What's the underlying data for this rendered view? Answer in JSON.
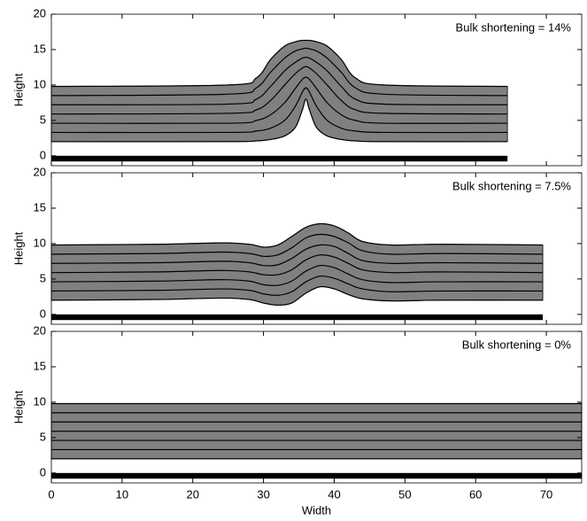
{
  "chart_data": [
    {
      "type": "layers",
      "annotation": "Bulk shortening = 14%",
      "ylabel": "Height",
      "xlim": [
        0,
        75
      ],
      "ylim": [
        -1.4,
        20
      ],
      "xticks": [
        0,
        10,
        20,
        30,
        40,
        50,
        60,
        70
      ],
      "yticks": [
        0,
        5,
        10,
        15,
        20
      ],
      "show_xtick_labels": false,
      "line_color": "#000000",
      "layer_color": "#808080",
      "basement_color": "#000000",
      "basement": {
        "x": [
          0,
          64.5
        ],
        "y": [
          -0.8,
          0
        ]
      },
      "x": [
        0,
        25,
        29,
        31,
        33,
        34.5,
        35.5,
        36,
        36.5,
        37.5,
        39,
        41,
        43,
        47,
        64.5
      ],
      "series": [
        {
          "values": [
            2,
            2,
            2.1,
            2.3,
            2.8,
            4,
            6.5,
            8,
            6.5,
            4,
            2.8,
            2.3,
            2.1,
            2,
            2
          ]
        },
        {
          "values": [
            3.3,
            3.3,
            3.5,
            3.9,
            5,
            7,
            9,
            9.6,
            9,
            7,
            5,
            3.9,
            3.5,
            3.3,
            3.3
          ]
        },
        {
          "values": [
            4.6,
            4.6,
            5,
            5.8,
            7.5,
            9.5,
            10.8,
            11.1,
            10.8,
            9.5,
            7.5,
            5.8,
            5,
            4.6,
            4.6
          ]
        },
        {
          "values": [
            5.9,
            6,
            6.5,
            7.8,
            10,
            11.6,
            12.4,
            12.6,
            12.4,
            11.6,
            10,
            7.8,
            6.5,
            6,
            5.9
          ]
        },
        {
          "values": [
            7.2,
            7.3,
            8,
            9.8,
            12,
            13.2,
            13.8,
            13.9,
            13.8,
            13.2,
            12,
            9.8,
            8,
            7.3,
            7.2
          ]
        },
        {
          "values": [
            8.5,
            8.7,
            9.6,
            11.8,
            13.8,
            14.8,
            15.1,
            15.2,
            15.1,
            14.8,
            13.8,
            11.8,
            9.6,
            8.7,
            8.5
          ]
        },
        {
          "values": [
            9.8,
            10,
            11,
            13.6,
            15.5,
            16.1,
            16.3,
            16.3,
            16.3,
            16.1,
            15.5,
            13.6,
            11,
            10,
            9.8
          ]
        }
      ]
    },
    {
      "type": "layers",
      "annotation": "Bulk shortening = 7.5%",
      "ylabel": "Height",
      "xlim": [
        0,
        75
      ],
      "ylim": [
        -1.4,
        20
      ],
      "xticks": [
        0,
        10,
        20,
        30,
        40,
        50,
        60,
        70
      ],
      "yticks": [
        0,
        5,
        10,
        15,
        20
      ],
      "show_xtick_labels": false,
      "line_color": "#000000",
      "layer_color": "#808080",
      "basement_color": "#000000",
      "basement": {
        "x": [
          0,
          69.5
        ],
        "y": [
          -0.8,
          0
        ]
      },
      "x": [
        0,
        15,
        24,
        28,
        30,
        32,
        34,
        36,
        38,
        40,
        42,
        44,
        48,
        55,
        69.5
      ],
      "series": [
        {
          "values": [
            2,
            2.1,
            2.3,
            2.1,
            1.6,
            1.3,
            1.6,
            3,
            3.9,
            3.6,
            2.8,
            2.2,
            1.9,
            2,
            2
          ]
        },
        {
          "values": [
            3.3,
            3.4,
            3.6,
            3.4,
            2.9,
            2.7,
            3.2,
            4.6,
            5.4,
            5.1,
            4.3,
            3.6,
            3.2,
            3.3,
            3.3
          ]
        },
        {
          "values": [
            4.6,
            4.7,
            4.9,
            4.7,
            4.2,
            4.1,
            4.7,
            6.1,
            6.9,
            6.6,
            5.7,
            4.9,
            4.5,
            4.6,
            4.6
          ]
        },
        {
          "values": [
            5.9,
            6,
            6.2,
            6,
            5.6,
            5.6,
            6.3,
            7.7,
            8.4,
            8.1,
            7.2,
            6.3,
            5.9,
            6,
            5.9
          ]
        },
        {
          "values": [
            7.2,
            7.3,
            7.5,
            7.3,
            6.9,
            7,
            7.9,
            9.2,
            9.8,
            9.6,
            8.6,
            7.6,
            7.2,
            7.3,
            7.2
          ]
        },
        {
          "values": [
            8.5,
            8.6,
            8.8,
            8.6,
            8.2,
            8.4,
            9.4,
            10.8,
            11.3,
            11,
            10.1,
            9,
            8.5,
            8.6,
            8.5
          ]
        },
        {
          "values": [
            9.8,
            9.9,
            10.1,
            9.9,
            9.5,
            9.8,
            11,
            12.3,
            12.8,
            12.5,
            11.5,
            10.3,
            9.8,
            9.9,
            9.8
          ]
        }
      ]
    },
    {
      "type": "layers",
      "annotation": "Bulk shortening = 0%",
      "ylabel": "Height",
      "xlabel": "Width",
      "xlim": [
        0,
        75
      ],
      "ylim": [
        -1.4,
        20
      ],
      "xticks": [
        0,
        10,
        20,
        30,
        40,
        50,
        60,
        70
      ],
      "yticks": [
        0,
        5,
        10,
        15,
        20
      ],
      "show_xtick_labels": true,
      "line_color": "#000000",
      "layer_color": "#808080",
      "basement_color": "#000000",
      "basement": {
        "x": [
          0,
          75
        ],
        "y": [
          -0.8,
          0
        ]
      },
      "x": [
        0,
        75
      ],
      "series": [
        {
          "values": [
            2,
            2
          ]
        },
        {
          "values": [
            3.3,
            3.3
          ]
        },
        {
          "values": [
            4.6,
            4.6
          ]
        },
        {
          "values": [
            5.9,
            5.9
          ]
        },
        {
          "values": [
            7.2,
            7.2
          ]
        },
        {
          "values": [
            8.5,
            8.5
          ]
        },
        {
          "values": [
            9.8,
            9.8
          ]
        }
      ]
    }
  ]
}
